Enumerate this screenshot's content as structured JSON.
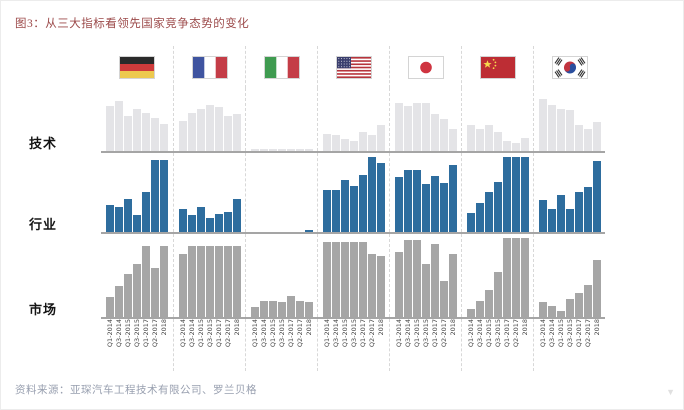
{
  "title": "图3：从三大指标看领先国家竞争态势的变化",
  "source_note": "资料来源：亚琛汽车工程技术有限公司、罗兰贝格",
  "watermark_glyph": "▼",
  "row_labels": {
    "tech": "技术",
    "industry": "行业",
    "market": "市场"
  },
  "colors": {
    "title": "#9c4a4a",
    "source": "#99a0b0",
    "tech_bar": "#e4e4e7",
    "industry_bar": "#2e6d9e",
    "market_bar": "#a6a6a6",
    "baseline": "#a5a5a5",
    "divider": "#d8d8d8"
  },
  "chart_data": {
    "type": "bar",
    "title": "图3：从三大指标看领先国家竞争态势的变化",
    "categories": [
      "Q1-2014",
      "Q3-2014",
      "Q1-2015",
      "Q3-2015",
      "Q1-2017",
      "Q2-2017",
      "2018"
    ],
    "xlabel": "",
    "ylabel": "",
    "ylim": [
      0,
      1
    ],
    "grid": false,
    "legend": "none",
    "values_unit": "relative bar height 0-1 (no numeric axis shown)",
    "rows": [
      {
        "key": "tech",
        "label": "技术",
        "color": "#e4e4e7"
      },
      {
        "key": "industry",
        "label": "行业",
        "color": "#2e6d9e"
      },
      {
        "key": "market",
        "label": "市场",
        "color": "#a6a6a6"
      }
    ],
    "countries": [
      {
        "id": "germany",
        "tech": [
          0.78,
          0.87,
          0.6,
          0.72,
          0.66,
          0.57,
          0.47
        ],
        "industry": [
          0.35,
          0.33,
          0.43,
          0.22,
          0.52,
          0.93,
          0.93
        ],
        "market": [
          0.25,
          0.38,
          0.53,
          0.66,
          0.88,
          0.61,
          0.88
        ]
      },
      {
        "id": "france",
        "tech": [
          0.52,
          0.66,
          0.72,
          0.8,
          0.76,
          0.6,
          0.63
        ],
        "industry": [
          0.3,
          0.22,
          0.33,
          0.18,
          0.23,
          0.26,
          0.43
        ],
        "market": [
          0.78,
          0.88,
          0.88,
          0.88,
          0.88,
          0.88,
          0.88
        ]
      },
      {
        "id": "italy",
        "tech": [
          0.03,
          0.03,
          0.03,
          0.03,
          0.03,
          0.03,
          0.03
        ],
        "industry": [
          0.0,
          0.0,
          0.0,
          0.0,
          0.0,
          0.0,
          0.03
        ],
        "market": [
          0.12,
          0.2,
          0.2,
          0.18,
          0.26,
          0.2,
          0.19
        ]
      },
      {
        "id": "usa",
        "tech": [
          0.3,
          0.28,
          0.2,
          0.18,
          0.33,
          0.28,
          0.45
        ],
        "industry": [
          0.55,
          0.54,
          0.68,
          0.6,
          0.74,
          0.97,
          0.9
        ],
        "market": [
          0.93,
          0.93,
          0.93,
          0.93,
          0.93,
          0.78,
          0.75
        ]
      },
      {
        "id": "japan",
        "tech": [
          0.82,
          0.78,
          0.82,
          0.82,
          0.64,
          0.56,
          0.38
        ],
        "industry": [
          0.72,
          0.8,
          0.8,
          0.62,
          0.73,
          0.63,
          0.87
        ],
        "market": [
          0.8,
          0.95,
          0.95,
          0.65,
          0.9,
          0.45,
          0.78
        ]
      },
      {
        "id": "china",
        "tech": [
          0.45,
          0.38,
          0.45,
          0.33,
          0.17,
          0.14,
          0.22
        ],
        "industry": [
          0.25,
          0.38,
          0.52,
          0.65,
          0.97,
          0.97,
          0.97
        ],
        "market": [
          0.1,
          0.2,
          0.33,
          0.55,
          0.97,
          0.97,
          0.97
        ]
      },
      {
        "id": "korea",
        "tech": [
          0.9,
          0.8,
          0.72,
          0.7,
          0.45,
          0.38,
          0.5
        ],
        "industry": [
          0.42,
          0.3,
          0.48,
          0.3,
          0.52,
          0.58,
          0.92
        ],
        "market": [
          0.18,
          0.14,
          0.07,
          0.22,
          0.3,
          0.4,
          0.7
        ]
      }
    ]
  }
}
